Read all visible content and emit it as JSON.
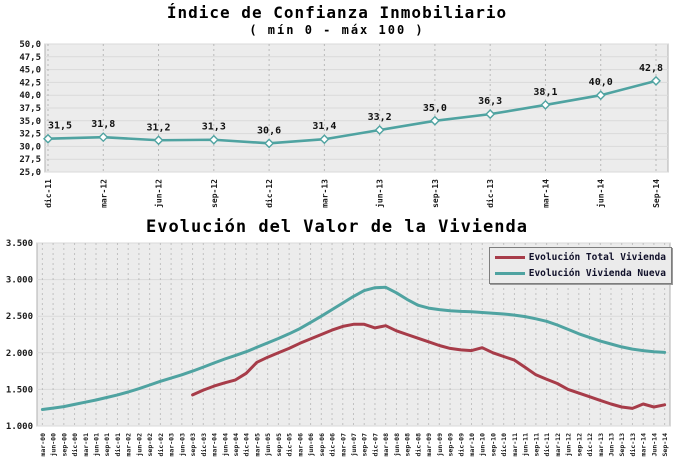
{
  "colors": {
    "teal": "#4fa3a1",
    "red": "#a73c49",
    "plot_bg": "#ececec",
    "grid_h": "#dadada",
    "grid_v": "#9f9f9f",
    "plot_border": "#b0b0b0",
    "text": "#1b1b1b",
    "marker_fill": "#ffffff"
  },
  "chart_data": [
    {
      "type": "line",
      "title": "Índice de Confianza Inmobiliario",
      "subtitle": "( mín 0 - máx 100 )",
      "categories": [
        "dic-11",
        "mar-12",
        "jun-12",
        "sep-12",
        "dic-12",
        "mar-13",
        "jun-13",
        "sep-13",
        "dic-13",
        "mar-14",
        "jun-14",
        "Sep-14"
      ],
      "values": [
        31.5,
        31.8,
        31.2,
        31.3,
        30.6,
        31.4,
        33.2,
        35.0,
        36.3,
        38.1,
        40.0,
        42.8
      ],
      "point_labels": [
        "31,5",
        "31,8",
        "31,2",
        "31,3",
        "30,6",
        "31,4",
        "33,2",
        "35,0",
        "36,3",
        "38,1",
        "40,0",
        "42,8"
      ],
      "y_ticks": [
        "50,0",
        "47,5",
        "45,0",
        "42,5",
        "40,0",
        "37,5",
        "35,0",
        "32,5",
        "30,0",
        "27,5",
        "25,0"
      ],
      "ylim": [
        25.0,
        50.0
      ],
      "grid": true,
      "legend_position": "none",
      "marker": "diamond",
      "line_color_key": "teal"
    },
    {
      "type": "line",
      "title": "Evolución del Valor de la Vivienda",
      "categories": [
        "mar-00",
        "jun-00",
        "sep-00",
        "dic-00",
        "mar-01",
        "jun-01",
        "sep-01",
        "dic-01",
        "mar-02",
        "jun-02",
        "sep-02",
        "dic-02",
        "mar-03",
        "jun-03",
        "sep-03",
        "dic-03",
        "mar-04",
        "jun-04",
        "sep-04",
        "dic-04",
        "mar-05",
        "jun-05",
        "sep-05",
        "dic-05",
        "mar-06",
        "jun-06",
        "sep-06",
        "dic-06",
        "mar-07",
        "jun-07",
        "sep-07",
        "dic-07",
        "mar-08",
        "jun-08",
        "sep-08",
        "dic-08",
        "mar-09",
        "jun-09",
        "sep-09",
        "dic-09",
        "mar-10",
        "jun-10",
        "sep-10",
        "dic-10",
        "mar-11",
        "jun-11",
        "sep-11",
        "dic-11",
        "mar-12",
        "jun-12",
        "sep-12",
        "dic-12",
        "mar-13",
        "Jun-13",
        "Sep-13",
        "dic-13",
        "mar-14",
        "Jun-14",
        "Sep-14"
      ],
      "series": [
        {
          "name": "Evolución Total Vivienda",
          "color_key": "red",
          "values": [
            null,
            null,
            null,
            null,
            null,
            null,
            null,
            null,
            null,
            null,
            null,
            null,
            null,
            null,
            1425,
            1490,
            1545,
            1590,
            1630,
            1720,
            1870,
            1940,
            2000,
            2060,
            2130,
            2190,
            2250,
            2310,
            2360,
            2390,
            2390,
            2340,
            2370,
            2300,
            2250,
            2200,
            2150,
            2100,
            2060,
            2040,
            2030,
            2070,
            2000,
            1950,
            1900,
            1800,
            1700,
            1640,
            1580,
            1500,
            1450,
            1400,
            1350,
            1300,
            1260,
            1240,
            1300,
            1260,
            1290
          ]
        },
        {
          "name": "Evolución Vivienda Nueva",
          "color_key": "teal",
          "values": [
            1225,
            1245,
            1265,
            1295,
            1325,
            1355,
            1390,
            1425,
            1465,
            1510,
            1560,
            1610,
            1655,
            1700,
            1750,
            1805,
            1860,
            1915,
            1965,
            2015,
            2075,
            2135,
            2195,
            2260,
            2330,
            2415,
            2500,
            2590,
            2680,
            2770,
            2850,
            2890,
            2895,
            2820,
            2730,
            2650,
            2610,
            2590,
            2575,
            2565,
            2560,
            2550,
            2540,
            2530,
            2515,
            2495,
            2465,
            2430,
            2380,
            2320,
            2260,
            2210,
            2160,
            2120,
            2080,
            2050,
            2030,
            2015,
            2005
          ]
        }
      ],
      "y_ticks": [
        "3.500",
        "3.000",
        "2.500",
        "2.000",
        "1.500",
        "1.000"
      ],
      "ylim": [
        1000,
        3500
      ],
      "grid": true,
      "legend_position": "top-right"
    }
  ]
}
